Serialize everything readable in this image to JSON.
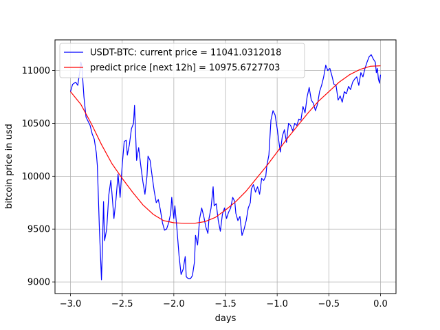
{
  "chart_data": {
    "type": "line",
    "title": "",
    "xlabel": "days",
    "ylabel": "bitcoin price in usd",
    "xlim": [
      -3.15,
      0.15
    ],
    "ylim": [
      8890,
      11290
    ],
    "x_ticks": [
      -3.0,
      -2.5,
      -2.0,
      -1.5,
      -1.0,
      -0.5,
      0.0
    ],
    "x_tick_labels": [
      "−3.0",
      "−2.5",
      "−2.0",
      "−1.5",
      "−1.0",
      "−0.5",
      "0.0"
    ],
    "y_ticks": [
      9000,
      9500,
      10000,
      10500,
      11000
    ],
    "y_tick_labels": [
      "9000",
      "9500",
      "10000",
      "10500",
      "11000"
    ],
    "grid": true,
    "legend_position": "upper-left",
    "series": [
      {
        "name": "USDT-BTC: current price = 11041.0312018",
        "color": "#0000ff",
        "points": [
          [
            -3.0,
            10800
          ],
          [
            -2.98,
            10870
          ],
          [
            -2.95,
            10890
          ],
          [
            -2.93,
            10860
          ],
          [
            -2.91,
            10990
          ],
          [
            -2.9,
            11080
          ],
          [
            -2.89,
            11040
          ],
          [
            -2.87,
            10750
          ],
          [
            -2.85,
            10560
          ],
          [
            -2.83,
            10520
          ],
          [
            -2.81,
            10480
          ],
          [
            -2.79,
            10400
          ],
          [
            -2.77,
            10350
          ],
          [
            -2.75,
            10220
          ],
          [
            -2.74,
            10100
          ],
          [
            -2.72,
            9500
          ],
          [
            -2.7,
            9020
          ],
          [
            -2.69,
            9350
          ],
          [
            -2.68,
            9760
          ],
          [
            -2.67,
            9390
          ],
          [
            -2.65,
            9500
          ],
          [
            -2.63,
            9820
          ],
          [
            -2.61,
            9960
          ],
          [
            -2.6,
            9850
          ],
          [
            -2.58,
            9600
          ],
          [
            -2.56,
            9780
          ],
          [
            -2.54,
            10020
          ],
          [
            -2.52,
            9800
          ],
          [
            -2.5,
            10100
          ],
          [
            -2.48,
            10330
          ],
          [
            -2.46,
            10340
          ],
          [
            -2.45,
            10200
          ],
          [
            -2.43,
            10300
          ],
          [
            -2.41,
            10450
          ],
          [
            -2.39,
            10500
          ],
          [
            -2.38,
            10670
          ],
          [
            -2.36,
            10150
          ],
          [
            -2.34,
            10270
          ],
          [
            -2.32,
            10100
          ],
          [
            -2.3,
            9950
          ],
          [
            -2.28,
            9830
          ],
          [
            -2.26,
            10000
          ],
          [
            -2.25,
            10190
          ],
          [
            -2.23,
            10150
          ],
          [
            -2.21,
            10000
          ],
          [
            -2.19,
            9860
          ],
          [
            -2.17,
            9750
          ],
          [
            -2.15,
            9780
          ],
          [
            -2.13,
            9680
          ],
          [
            -2.11,
            9560
          ],
          [
            -2.09,
            9490
          ],
          [
            -2.07,
            9500
          ],
          [
            -2.05,
            9560
          ],
          [
            -2.03,
            9650
          ],
          [
            -2.02,
            9800
          ],
          [
            -2.0,
            9600
          ],
          [
            -1.99,
            9720
          ],
          [
            -1.97,
            9500
          ],
          [
            -1.95,
            9250
          ],
          [
            -1.93,
            9070
          ],
          [
            -1.91,
            9120
          ],
          [
            -1.89,
            9240
          ],
          [
            -1.88,
            9050
          ],
          [
            -1.86,
            9030
          ],
          [
            -1.84,
            9030
          ],
          [
            -1.82,
            9060
          ],
          [
            -1.8,
            9190
          ],
          [
            -1.79,
            9440
          ],
          [
            -1.77,
            9350
          ],
          [
            -1.75,
            9600
          ],
          [
            -1.73,
            9700
          ],
          [
            -1.71,
            9620
          ],
          [
            -1.69,
            9520
          ],
          [
            -1.67,
            9460
          ],
          [
            -1.66,
            9600
          ],
          [
            -1.64,
            9700
          ],
          [
            -1.62,
            9900
          ],
          [
            -1.61,
            9720
          ],
          [
            -1.59,
            9740
          ],
          [
            -1.57,
            9580
          ],
          [
            -1.55,
            9480
          ],
          [
            -1.53,
            9640
          ],
          [
            -1.51,
            9700
          ],
          [
            -1.49,
            9600
          ],
          [
            -1.47,
            9660
          ],
          [
            -1.45,
            9700
          ],
          [
            -1.43,
            9800
          ],
          [
            -1.41,
            9760
          ],
          [
            -1.4,
            9650
          ],
          [
            -1.38,
            9580
          ],
          [
            -1.36,
            9620
          ],
          [
            -1.34,
            9440
          ],
          [
            -1.32,
            9500
          ],
          [
            -1.3,
            9580
          ],
          [
            -1.28,
            9700
          ],
          [
            -1.26,
            9750
          ],
          [
            -1.25,
            9880
          ],
          [
            -1.23,
            9920
          ],
          [
            -1.21,
            9850
          ],
          [
            -1.19,
            9900
          ],
          [
            -1.17,
            9830
          ],
          [
            -1.15,
            9980
          ],
          [
            -1.13,
            9960
          ],
          [
            -1.11,
            10000
          ],
          [
            -1.1,
            10100
          ],
          [
            -1.08,
            10200
          ],
          [
            -1.06,
            10530
          ],
          [
            -1.04,
            10620
          ],
          [
            -1.02,
            10580
          ],
          [
            -1.0,
            10450
          ],
          [
            -0.98,
            10300
          ],
          [
            -0.97,
            10230
          ],
          [
            -0.95,
            10380
          ],
          [
            -0.93,
            10440
          ],
          [
            -0.91,
            10320
          ],
          [
            -0.89,
            10500
          ],
          [
            -0.87,
            10480
          ],
          [
            -0.85,
            10430
          ],
          [
            -0.83,
            10500
          ],
          [
            -0.81,
            10480
          ],
          [
            -0.79,
            10540
          ],
          [
            -0.77,
            10530
          ],
          [
            -0.75,
            10660
          ],
          [
            -0.73,
            10600
          ],
          [
            -0.71,
            10750
          ],
          [
            -0.69,
            10840
          ],
          [
            -0.67,
            10720
          ],
          [
            -0.65,
            10690
          ],
          [
            -0.63,
            10620
          ],
          [
            -0.61,
            10680
          ],
          [
            -0.59,
            10800
          ],
          [
            -0.57,
            10860
          ],
          [
            -0.55,
            10940
          ],
          [
            -0.53,
            11050
          ],
          [
            -0.51,
            11000
          ],
          [
            -0.49,
            11020
          ],
          [
            -0.47,
            10950
          ],
          [
            -0.45,
            10870
          ],
          [
            -0.43,
            10860
          ],
          [
            -0.41,
            10720
          ],
          [
            -0.39,
            10760
          ],
          [
            -0.37,
            10700
          ],
          [
            -0.35,
            10800
          ],
          [
            -0.33,
            10780
          ],
          [
            -0.31,
            10850
          ],
          [
            -0.29,
            10820
          ],
          [
            -0.27,
            10890
          ],
          [
            -0.25,
            10920
          ],
          [
            -0.23,
            10940
          ],
          [
            -0.21,
            10860
          ],
          [
            -0.19,
            10980
          ],
          [
            -0.17,
            10940
          ],
          [
            -0.15,
            11020
          ],
          [
            -0.13,
            11080
          ],
          [
            -0.11,
            11130
          ],
          [
            -0.09,
            11150
          ],
          [
            -0.07,
            11110
          ],
          [
            -0.05,
            11080
          ],
          [
            -0.04,
            10980
          ],
          [
            -0.03,
            11020
          ],
          [
            -0.02,
            10920
          ],
          [
            -0.01,
            10880
          ],
          [
            0.0,
            10960
          ]
        ]
      },
      {
        "name": "predict price [next 12h] = 10975.6727703",
        "color": "#ff0000",
        "points": [
          [
            -3.0,
            10800
          ],
          [
            -2.9,
            10680
          ],
          [
            -2.8,
            10500
          ],
          [
            -2.7,
            10300
          ],
          [
            -2.6,
            10120
          ],
          [
            -2.5,
            9980
          ],
          [
            -2.4,
            9850
          ],
          [
            -2.3,
            9730
          ],
          [
            -2.2,
            9640
          ],
          [
            -2.1,
            9580
          ],
          [
            -2.0,
            9560
          ],
          [
            -1.9,
            9555
          ],
          [
            -1.8,
            9555
          ],
          [
            -1.7,
            9570
          ],
          [
            -1.6,
            9610
          ],
          [
            -1.5,
            9680
          ],
          [
            -1.4,
            9760
          ],
          [
            -1.3,
            9860
          ],
          [
            -1.2,
            9980
          ],
          [
            -1.1,
            10100
          ],
          [
            -1.0,
            10230
          ],
          [
            -0.9,
            10360
          ],
          [
            -0.8,
            10480
          ],
          [
            -0.7,
            10600
          ],
          [
            -0.6,
            10710
          ],
          [
            -0.5,
            10800
          ],
          [
            -0.4,
            10890
          ],
          [
            -0.3,
            10960
          ],
          [
            -0.2,
            11010
          ],
          [
            -0.1,
            11040
          ],
          [
            0.0,
            11045
          ]
        ]
      }
    ]
  }
}
